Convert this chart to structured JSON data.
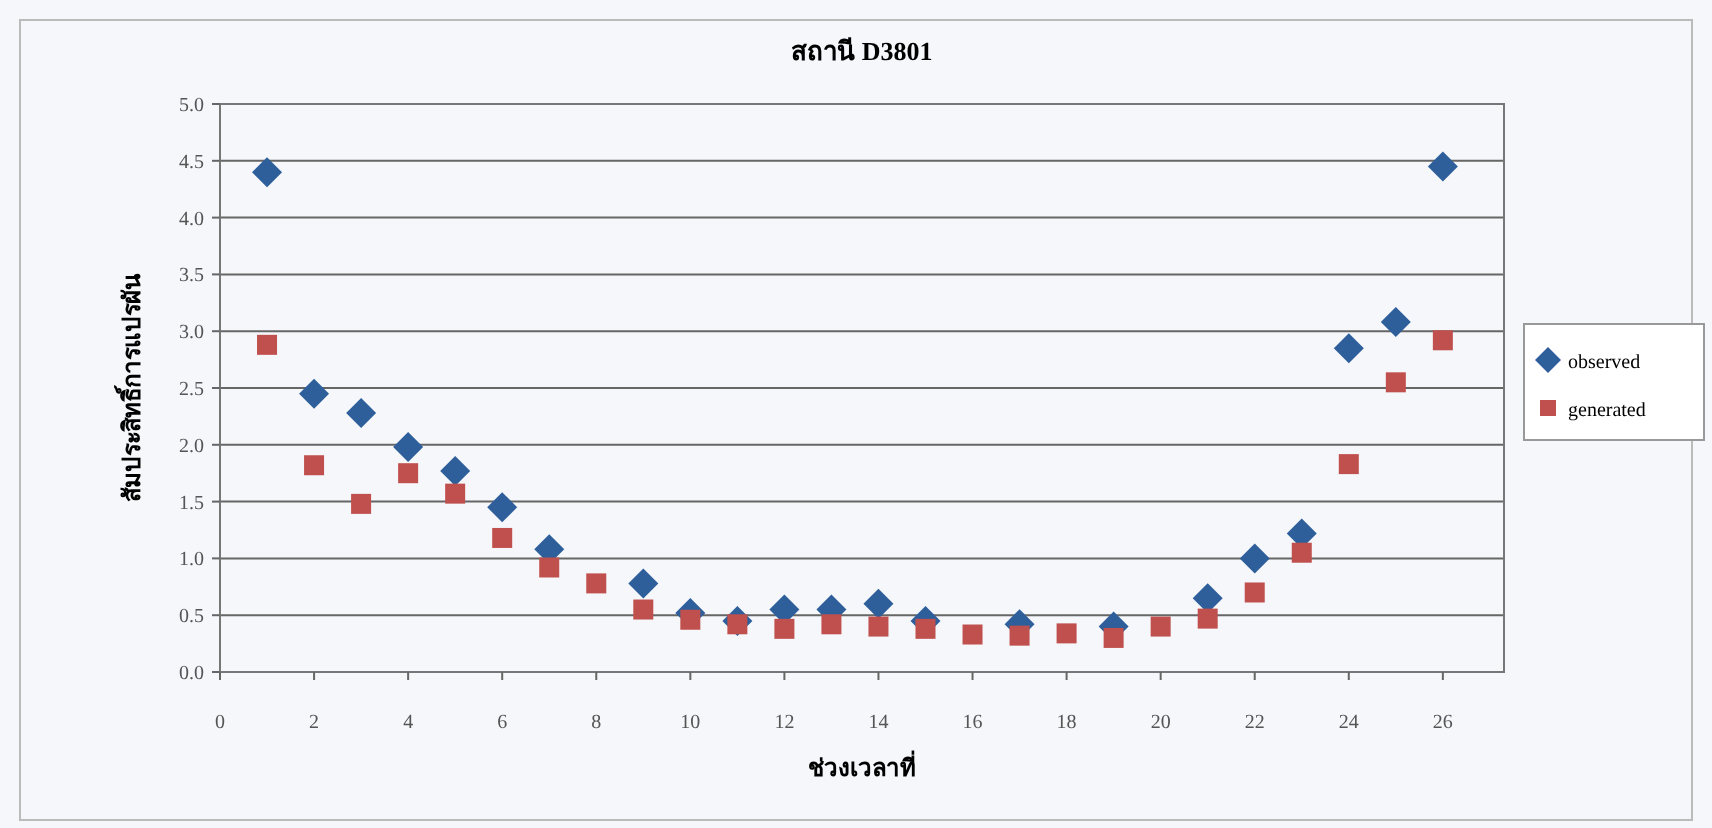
{
  "chart_data": {
    "type": "scatter",
    "title": "สถานี D3801",
    "xlabel": "ช่วงเวลาที่",
    "ylabel": "สัมประสิทธิ์การแปรผัน",
    "x": [
      1,
      2,
      3,
      4,
      5,
      6,
      7,
      8,
      9,
      10,
      11,
      12,
      13,
      14,
      15,
      16,
      17,
      18,
      19,
      20,
      21,
      22,
      23,
      24,
      25,
      26
    ],
    "series": [
      {
        "name": "observed",
        "color": "#2e5f9a",
        "marker": "diamond",
        "values": [
          4.4,
          2.45,
          2.28,
          1.98,
          1.77,
          1.45,
          1.08,
          null,
          0.78,
          0.52,
          0.45,
          0.55,
          0.55,
          0.6,
          0.45,
          null,
          0.42,
          null,
          0.4,
          null,
          0.65,
          1.0,
          1.22,
          2.85,
          3.08,
          4.45
        ]
      },
      {
        "name": "generated",
        "color": "#c0504d",
        "marker": "square",
        "values": [
          2.88,
          1.82,
          1.48,
          1.75,
          1.57,
          1.18,
          0.92,
          0.78,
          0.55,
          0.46,
          0.42,
          0.38,
          0.42,
          0.4,
          0.38,
          0.33,
          0.32,
          0.34,
          0.3,
          0.4,
          0.47,
          0.7,
          1.05,
          1.83,
          2.55,
          2.92
        ]
      }
    ],
    "xlim": [
      0,
      27.3
    ],
    "xticks": [
      0,
      2,
      4,
      6,
      8,
      10,
      12,
      14,
      16,
      18,
      20,
      22,
      24,
      26
    ],
    "ylim": [
      0,
      5
    ],
    "yticks": [
      {
        "value": 0,
        "label": "0.0"
      },
      {
        "value": 0.5,
        "label": "0.5"
      },
      {
        "value": 1,
        "label": "1.0"
      },
      {
        "value": 1.5,
        "label": "1.5"
      },
      {
        "value": 2,
        "label": "2.0"
      },
      {
        "value": 2.5,
        "label": "2.5"
      },
      {
        "value": 3,
        "label": "3.0"
      },
      {
        "value": 3.5,
        "label": "3.5"
      },
      {
        "value": 4,
        "label": "4.0"
      },
      {
        "value": 4.5,
        "label": "4.5"
      },
      {
        "value": 5,
        "label": "5.0"
      }
    ],
    "grid": "y",
    "legend": "right"
  }
}
